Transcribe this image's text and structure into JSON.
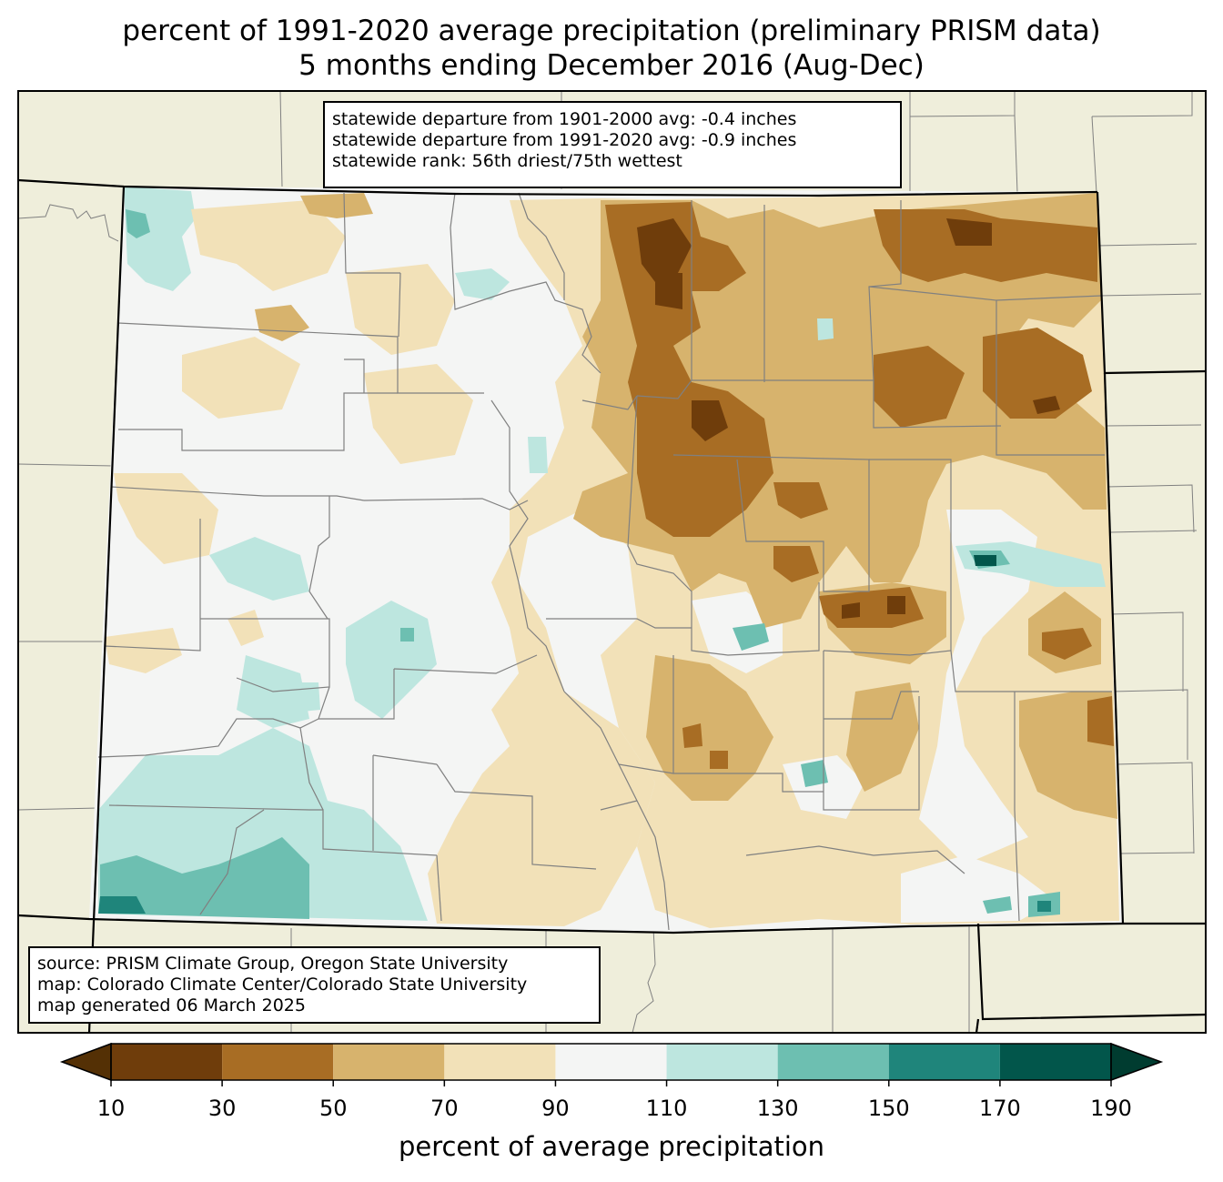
{
  "title": {
    "line1": "percent of 1991-2020 average precipitation (preliminary PRISM data)",
    "line2": "5 months ending December 2016 (Aug-Dec)"
  },
  "stats_box": {
    "line1": "statewide departure from 1901-2000 avg: -0.4 inches",
    "line2": "statewide departure from 1991-2020 avg: -0.9 inches",
    "line3": "statewide rank: 56th driest/75th wettest"
  },
  "credits_box": {
    "line1": "source: PRISM Climate Group, Oregon State University",
    "line2": "map: Colorado Climate Center/Colorado State University",
    "line3": "map generated 06 March 2025"
  },
  "colorbar": {
    "label": "percent of average precipitation",
    "ticks": [
      "10",
      "30",
      "50",
      "70",
      "90",
      "110",
      "130",
      "150",
      "170",
      "190"
    ],
    "under_color": "#543005",
    "over_color": "#003c30",
    "bins": [
      {
        "from": 10,
        "to": 30,
        "color": "#6f3d0b"
      },
      {
        "from": 30,
        "to": 50,
        "color": "#a86d24"
      },
      {
        "from": 50,
        "to": 70,
        "color": "#d7b36d"
      },
      {
        "from": 70,
        "to": 90,
        "color": "#f2e1b8"
      },
      {
        "from": 90,
        "to": 110,
        "color": "#f4f5f4"
      },
      {
        "from": 110,
        "to": 130,
        "color": "#bde6df"
      },
      {
        "from": 130,
        "to": 150,
        "color": "#6dbfb1"
      },
      {
        "from": 150,
        "to": 170,
        "color": "#1f857b"
      },
      {
        "from": 170,
        "to": 190,
        "color": "#02564b"
      }
    ]
  },
  "colors": {
    "land_outside": "#efeedb",
    "county_line": "#808080",
    "state_line": "#000000"
  }
}
